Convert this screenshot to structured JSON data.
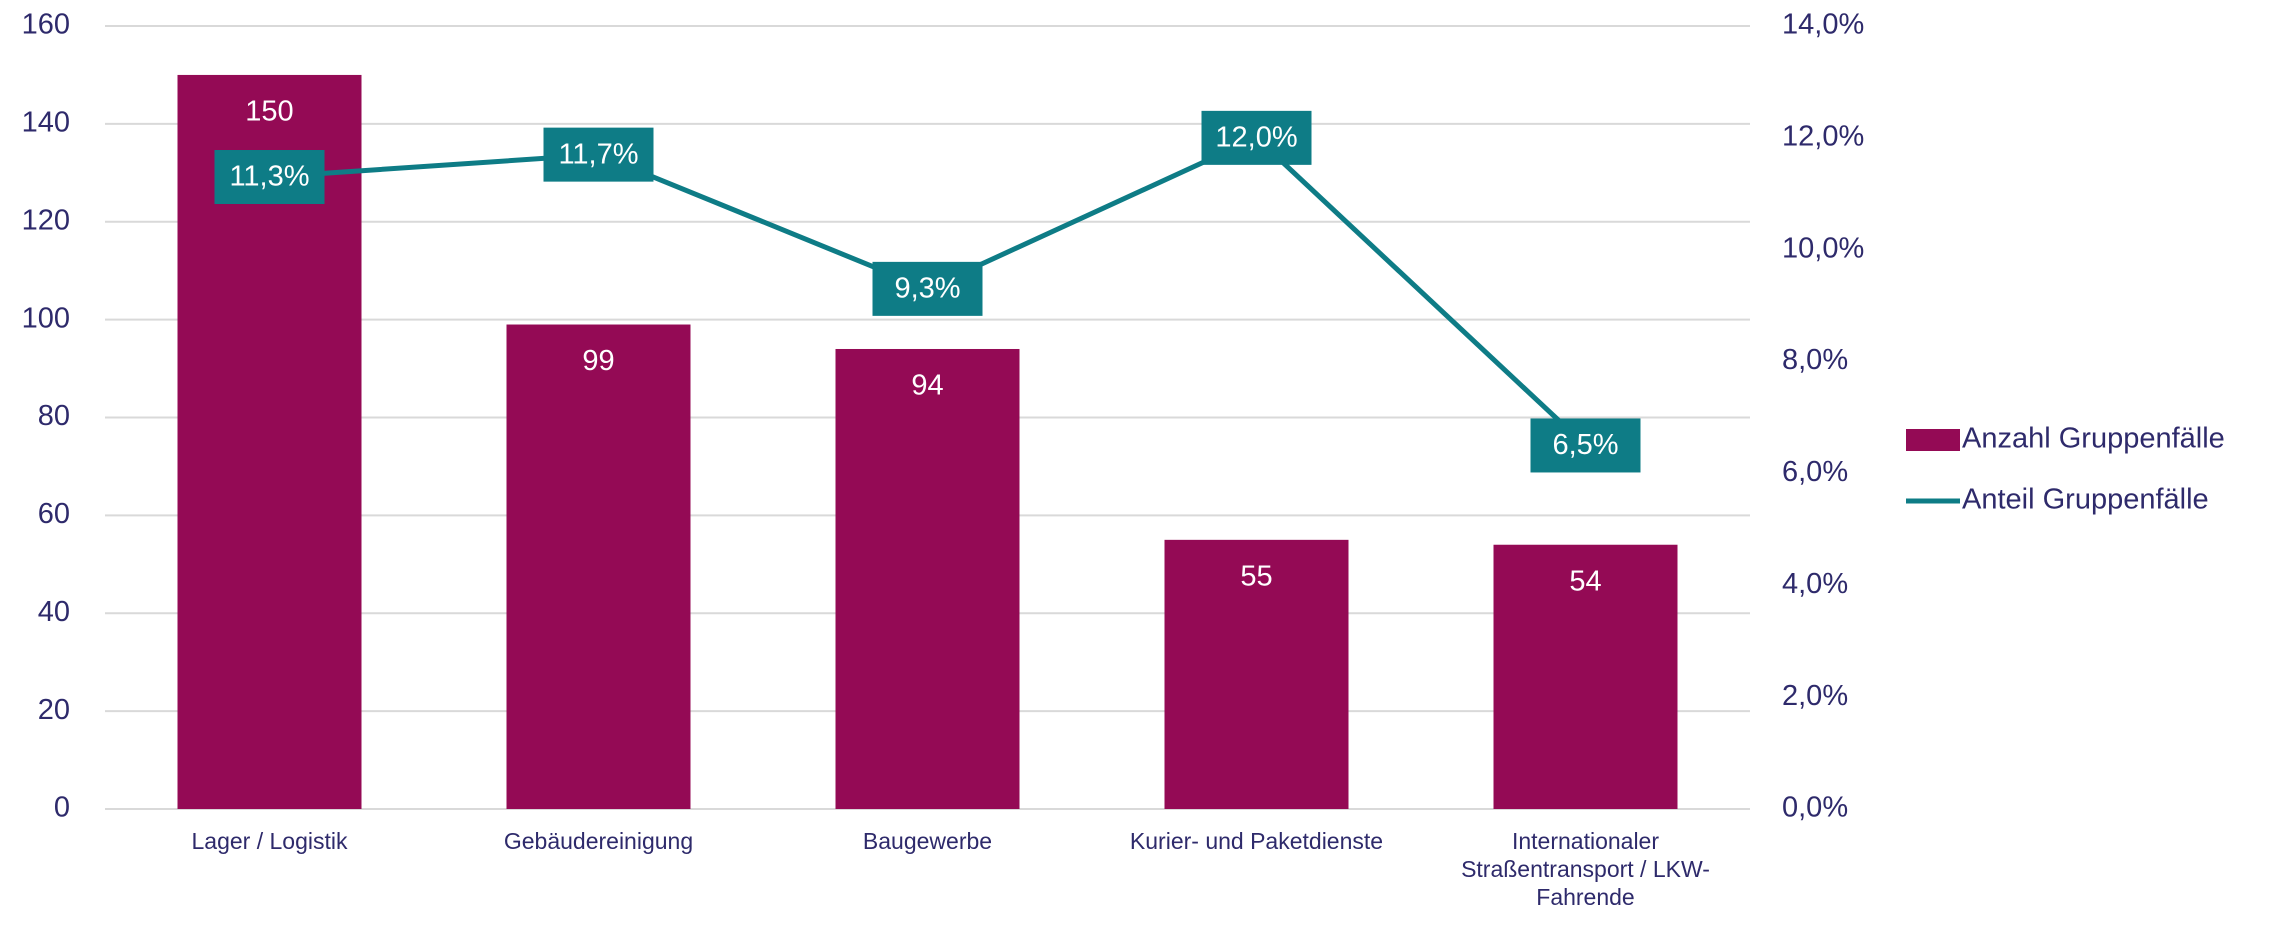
{
  "chart_data": {
    "type": "bar_line",
    "categories": [
      "Lager / Logistik",
      "Gebäudereinigung",
      "Baugewerbe",
      "Kurier- und Paketdienste",
      "Internationaler Straßentransport / LKW-Fahrende"
    ],
    "series": [
      {
        "name": "Anzahl Gruppenfälle",
        "type": "bar",
        "color": "#940a55",
        "values": [
          150,
          99,
          94,
          55,
          54
        ]
      },
      {
        "name": "Anteil Gruppenfälle",
        "type": "line",
        "axis": "y2",
        "color": "#0e7c86",
        "values": [
          11.3,
          11.7,
          9.3,
          12.0,
          6.5
        ],
        "value_labels": [
          "11,3%",
          "11,7%",
          "9,3%",
          "12,0%",
          "6,5%"
        ]
      }
    ],
    "ylim": [
      0,
      160
    ],
    "yticks": [
      0,
      20,
      40,
      60,
      80,
      100,
      120,
      140,
      160
    ],
    "y2lim": [
      0,
      14
    ],
    "y2ticks": [
      {
        "value": 0,
        "label": "0,0%"
      },
      {
        "value": 2,
        "label": "2,0%"
      },
      {
        "value": 4,
        "label": "4,0%"
      },
      {
        "value": 6,
        "label": "6,0%"
      },
      {
        "value": 8,
        "label": "8,0%"
      },
      {
        "value": 10,
        "label": "10,0%"
      },
      {
        "value": 12,
        "label": "12,0%"
      },
      {
        "value": 14,
        "label": "14,0%"
      }
    ],
    "grid": true,
    "legend": "right"
  }
}
